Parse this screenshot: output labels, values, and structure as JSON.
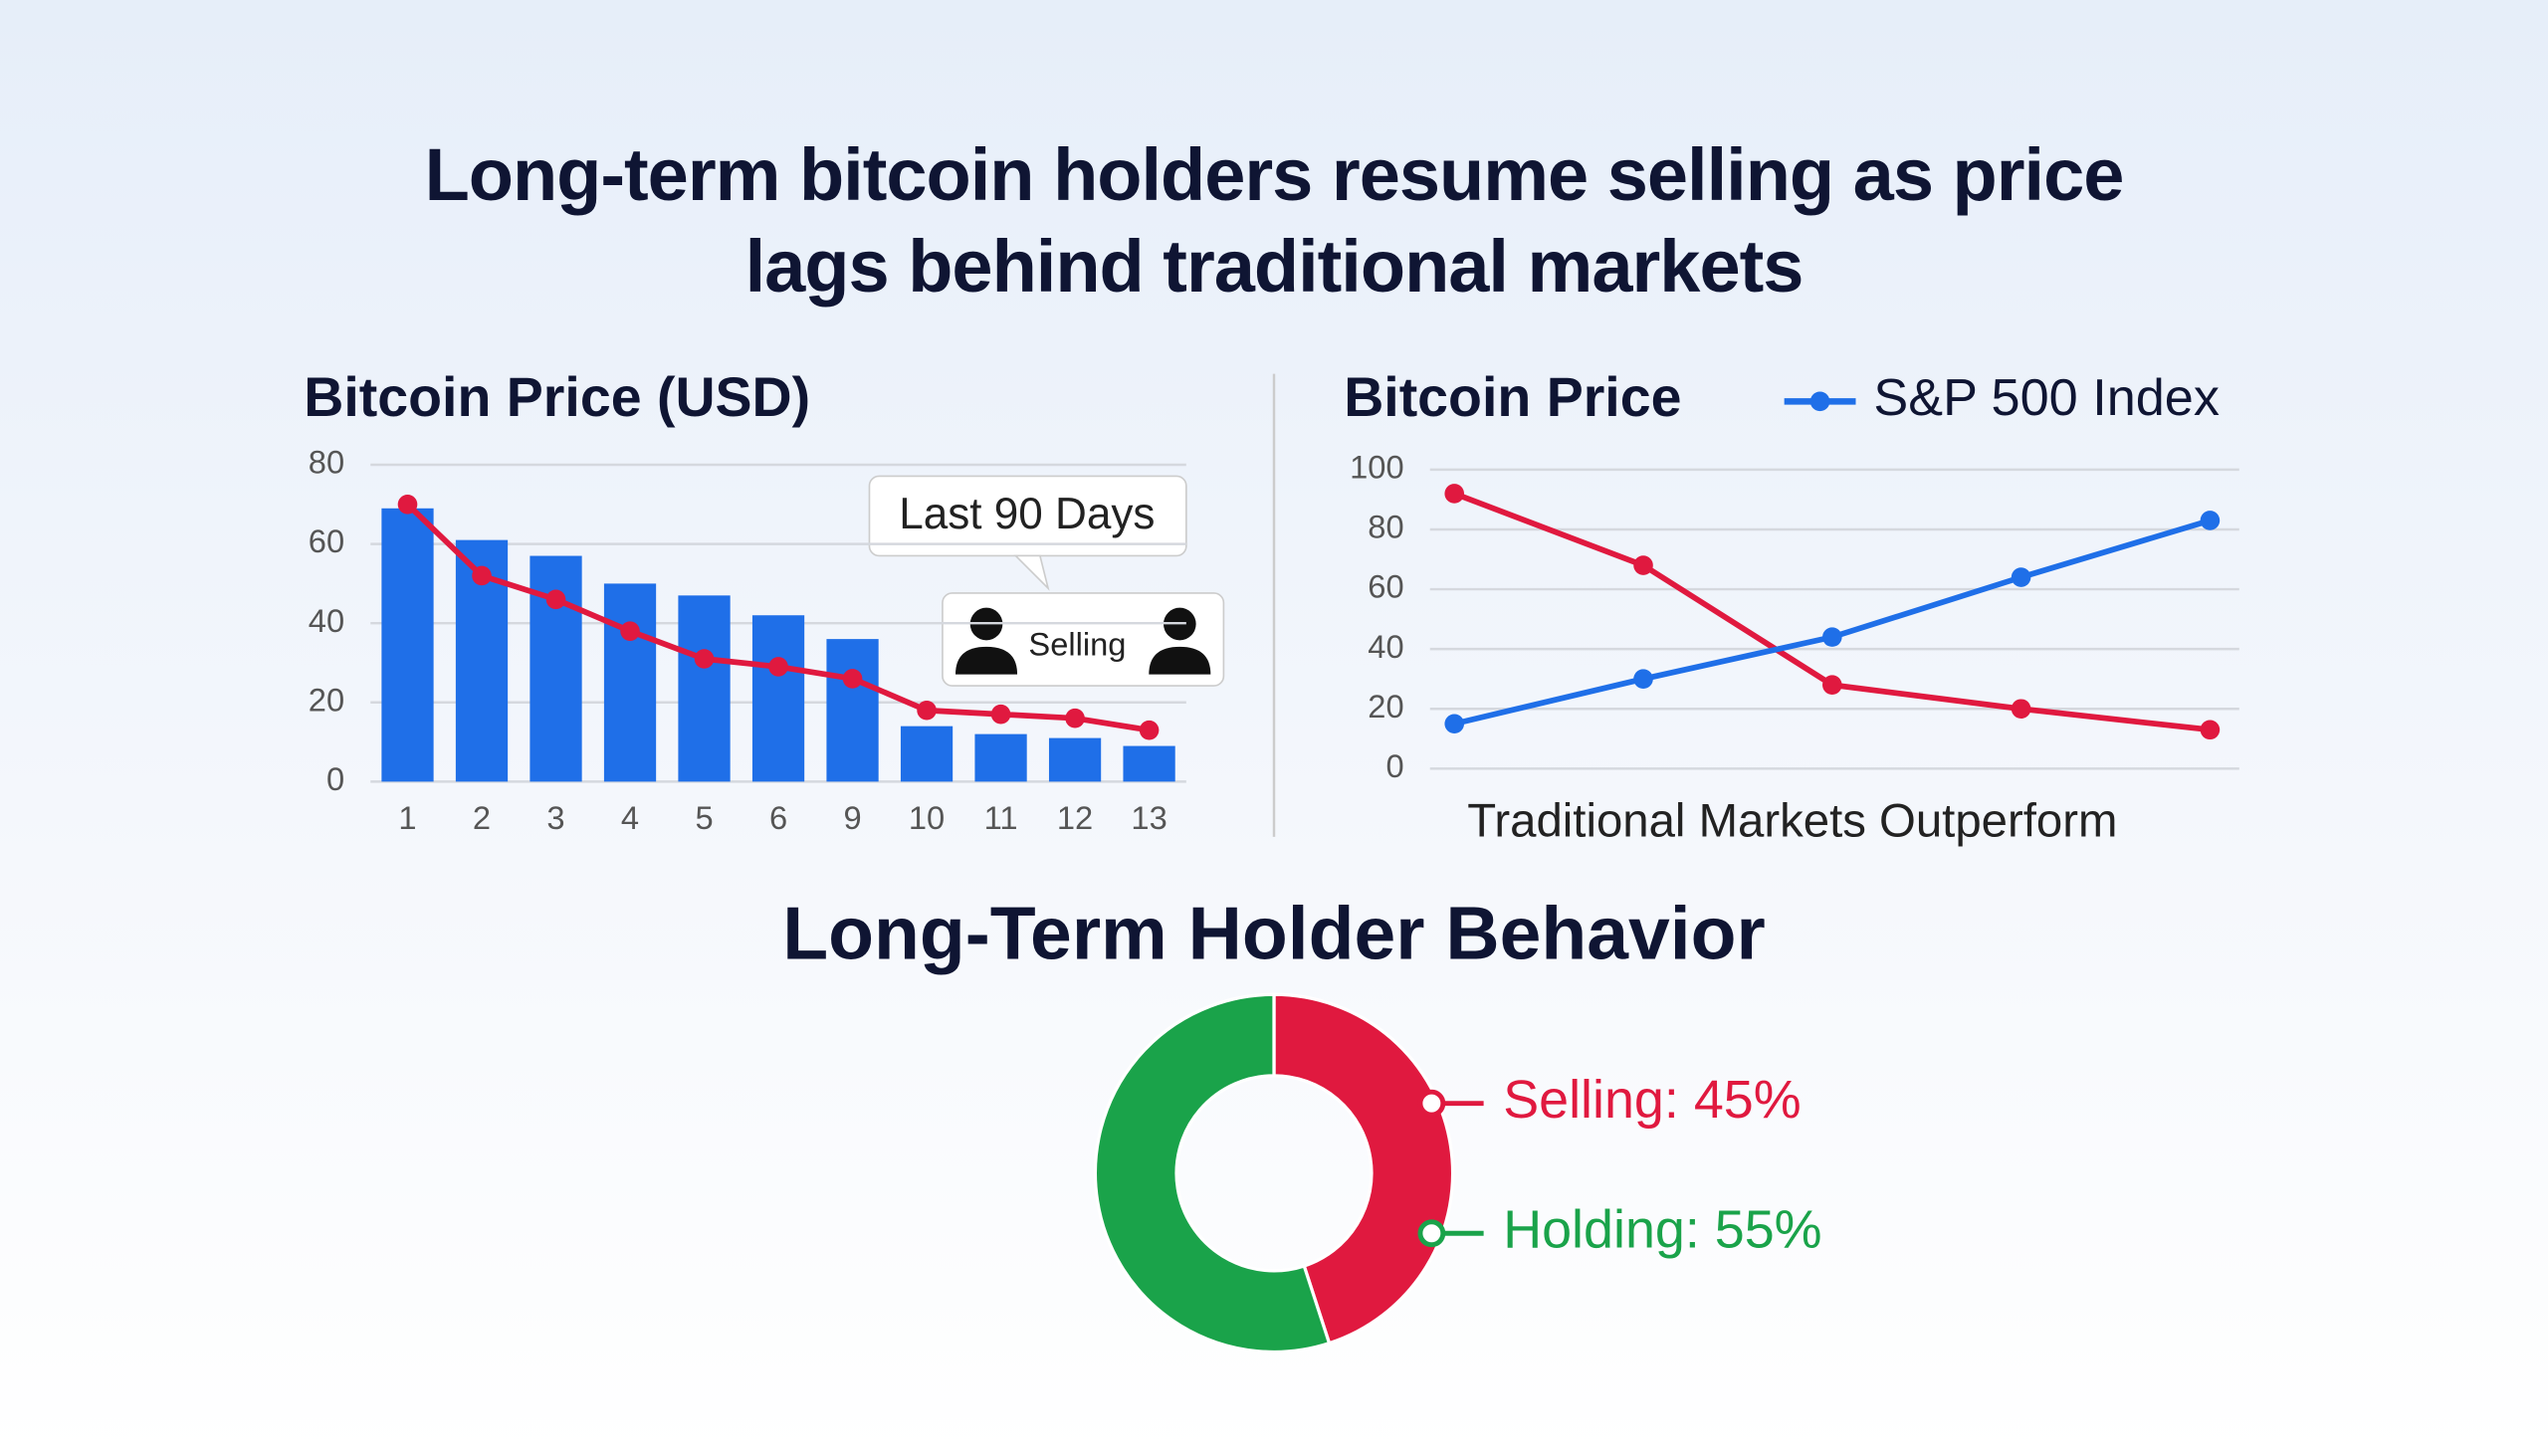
{
  "title": "Long-term bitcoin holders resume selling as price lags behind traditional markets",
  "chart_data": [
    {
      "type": "bar",
      "title": "Bitcoin Price (USD)",
      "categories": [
        "1",
        "2",
        "3",
        "4",
        "5",
        "6",
        "9",
        "10",
        "11",
        "12",
        "13"
      ],
      "series": [
        {
          "type": "bar",
          "color": "#1f6fe8",
          "values": [
            69,
            61,
            57,
            50,
            47,
            42,
            36,
            14,
            12,
            11,
            9
          ]
        },
        {
          "type": "line",
          "color": "#e0193f",
          "values": [
            70,
            52,
            46,
            38,
            31,
            29,
            26,
            18,
            17,
            16,
            13
          ]
        }
      ],
      "ylim": [
        0,
        80
      ],
      "yticks": [
        0,
        20,
        40,
        60,
        80
      ],
      "grid": true,
      "annotations": [
        "Last 90 Days",
        "Selling"
      ]
    },
    {
      "type": "line",
      "xlabel": "Traditional Markets Outperform",
      "categories": [
        null,
        null,
        null,
        null,
        null
      ],
      "series": [
        {
          "name": "Bitcoin Price",
          "color": "#e0193f",
          "values": [
            92,
            68,
            28,
            20,
            13
          ]
        },
        {
          "name": "S&P 500 Index",
          "color": "#1f6fe8",
          "values": [
            15,
            30,
            44,
            64,
            83
          ]
        }
      ],
      "ylim": [
        0,
        100
      ],
      "yticks": [
        0,
        20,
        40,
        60,
        80,
        100
      ],
      "grid": true,
      "legend": "top"
    },
    {
      "type": "donut",
      "title": "Long-Term Holder Behavior",
      "categories": [
        "Selling: 45%",
        "Holding: 55%"
      ],
      "values": [
        45,
        55
      ],
      "colors": [
        "#e0193f",
        "#1aa34a"
      ]
    }
  ]
}
